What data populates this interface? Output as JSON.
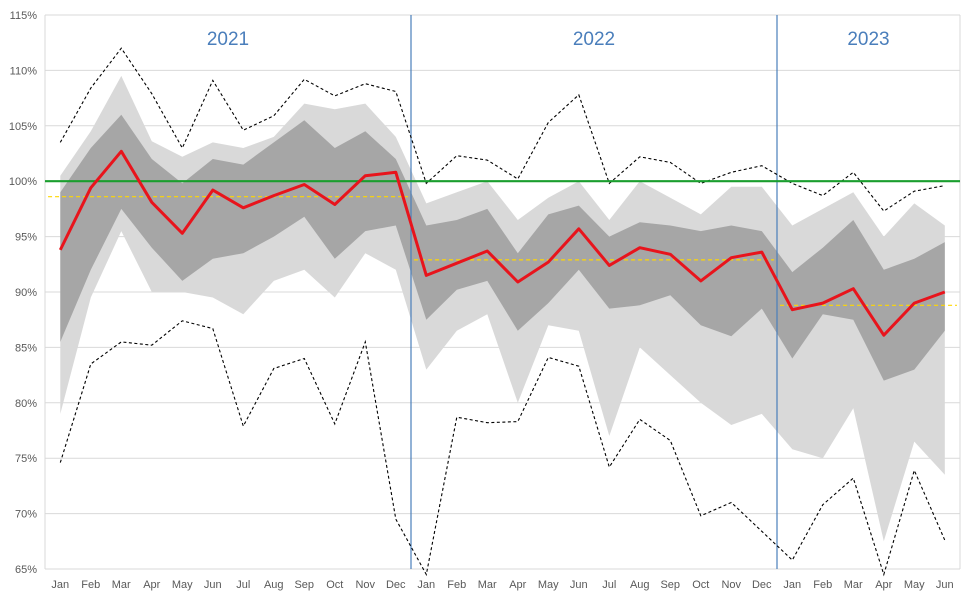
{
  "chart_data": {
    "type": "line",
    "title": "",
    "xlabel": "",
    "ylabel": "",
    "ylim": [
      65,
      115
    ],
    "y_ticks": [
      65,
      70,
      75,
      80,
      85,
      90,
      95,
      100,
      105,
      110,
      115
    ],
    "y_tick_suffix": "%",
    "grid": true,
    "categories": [
      "Jan",
      "Feb",
      "Mar",
      "Apr",
      "May",
      "Jun",
      "Jul",
      "Aug",
      "Sep",
      "Oct",
      "Nov",
      "Dec",
      "Jan",
      "Feb",
      "Mar",
      "Apr",
      "May",
      "Jun",
      "Jul",
      "Aug",
      "Sep",
      "Oct",
      "Nov",
      "Dec",
      "Jan",
      "Feb",
      "Mar",
      "Apr",
      "May",
      "Jun"
    ],
    "periods": [
      {
        "label": "2021",
        "start_index": 0,
        "end_index": 11
      },
      {
        "label": "2022",
        "start_index": 12,
        "end_index": 23
      },
      {
        "label": "2023",
        "start_index": 24,
        "end_index": 29
      }
    ],
    "series": [
      {
        "name": "max",
        "style": "dashed",
        "color": "#000000",
        "values": [
          103.5,
          108.4,
          112.0,
          107.9,
          103.0,
          109.1,
          104.6,
          105.9,
          109.2,
          107.7,
          108.8,
          108.1,
          99.8,
          102.3,
          101.9,
          100.2,
          105.3,
          107.8,
          99.8,
          102.2,
          101.7,
          99.8,
          100.8,
          101.4,
          99.8,
          98.7,
          100.8,
          97.3,
          99.1,
          99.6
        ]
      },
      {
        "name": "min",
        "style": "dashed",
        "color": "#000000",
        "values": [
          74.6,
          83.5,
          85.5,
          85.2,
          87.4,
          86.7,
          77.9,
          83.1,
          84.0,
          78.1,
          85.5,
          69.5,
          64.5,
          78.7,
          78.2,
          78.3,
          84.1,
          83.3,
          74.2,
          78.5,
          76.6,
          69.8,
          71.0,
          68.4,
          65.8,
          70.8,
          73.2,
          64.5,
          73.9,
          67.6
        ]
      },
      {
        "name": "outer band upper",
        "style": "area",
        "color": "#d9d9d9",
        "values": [
          100.5,
          104.5,
          109.5,
          103.6,
          102.2,
          103.5,
          103.0,
          104.0,
          107.0,
          106.5,
          107.0,
          104.0,
          98.0,
          99.0,
          100.0,
          96.5,
          98.5,
          100.0,
          96.5,
          100.0,
          98.5,
          97.0,
          99.5,
          99.5,
          96.0,
          97.5,
          99.0,
          95.0,
          98.0,
          96.0
        ]
      },
      {
        "name": "outer band lower",
        "style": "area",
        "color": "#d9d9d9",
        "values": [
          79.0,
          89.5,
          95.5,
          90.0,
          90.0,
          89.5,
          88.0,
          91.0,
          92.0,
          89.5,
          93.5,
          92.0,
          83.0,
          86.5,
          88.0,
          80.0,
          87.0,
          86.5,
          77.0,
          85.0,
          82.5,
          80.0,
          78.0,
          79.0,
          75.8,
          75.0,
          79.5,
          67.5,
          76.5,
          73.5
        ]
      },
      {
        "name": "inner band upper",
        "style": "area",
        "color": "#a6a6a6",
        "values": [
          99.0,
          103.0,
          106.0,
          102.0,
          99.8,
          102.0,
          101.5,
          103.5,
          105.5,
          103.0,
          104.5,
          102.0,
          96.0,
          96.5,
          97.5,
          93.5,
          97.0,
          97.8,
          95.0,
          96.3,
          96.0,
          95.5,
          96.0,
          95.5,
          91.8,
          94.0,
          96.5,
          92.0,
          93.0,
          94.5
        ]
      },
      {
        "name": "inner band lower",
        "style": "area",
        "color": "#a6a6a6",
        "values": [
          85.5,
          92.0,
          97.5,
          94.0,
          91.0,
          93.0,
          93.5,
          95.0,
          96.8,
          93.0,
          95.5,
          96.0,
          87.5,
          90.2,
          91.0,
          86.5,
          89.0,
          92.0,
          88.5,
          88.8,
          89.7,
          87.0,
          86.0,
          88.5,
          84.0,
          88.0,
          87.5,
          82.0,
          83.0,
          86.5
        ]
      },
      {
        "name": "actual",
        "style": "solid",
        "color": "#e8141c",
        "values": [
          93.8,
          99.4,
          102.7,
          98.1,
          95.3,
          99.2,
          97.6,
          98.7,
          99.7,
          97.9,
          100.5,
          100.8,
          91.5,
          92.6,
          93.7,
          90.9,
          92.7,
          95.7,
          92.4,
          94.0,
          93.4,
          91.0,
          93.1,
          93.6,
          88.4,
          89.0,
          90.3,
          86.1,
          89.0,
          90.0
        ]
      }
    ],
    "reference_line": {
      "name": "target",
      "value": 100,
      "color": "#1a9e2e"
    },
    "period_averages": [
      {
        "period": "2021",
        "value": 98.6,
        "color": "#ffd700"
      },
      {
        "period": "2022",
        "value": 92.9,
        "color": "#ffd700"
      },
      {
        "period": "2023",
        "value": 88.8,
        "color": "#ffd700"
      }
    ]
  }
}
